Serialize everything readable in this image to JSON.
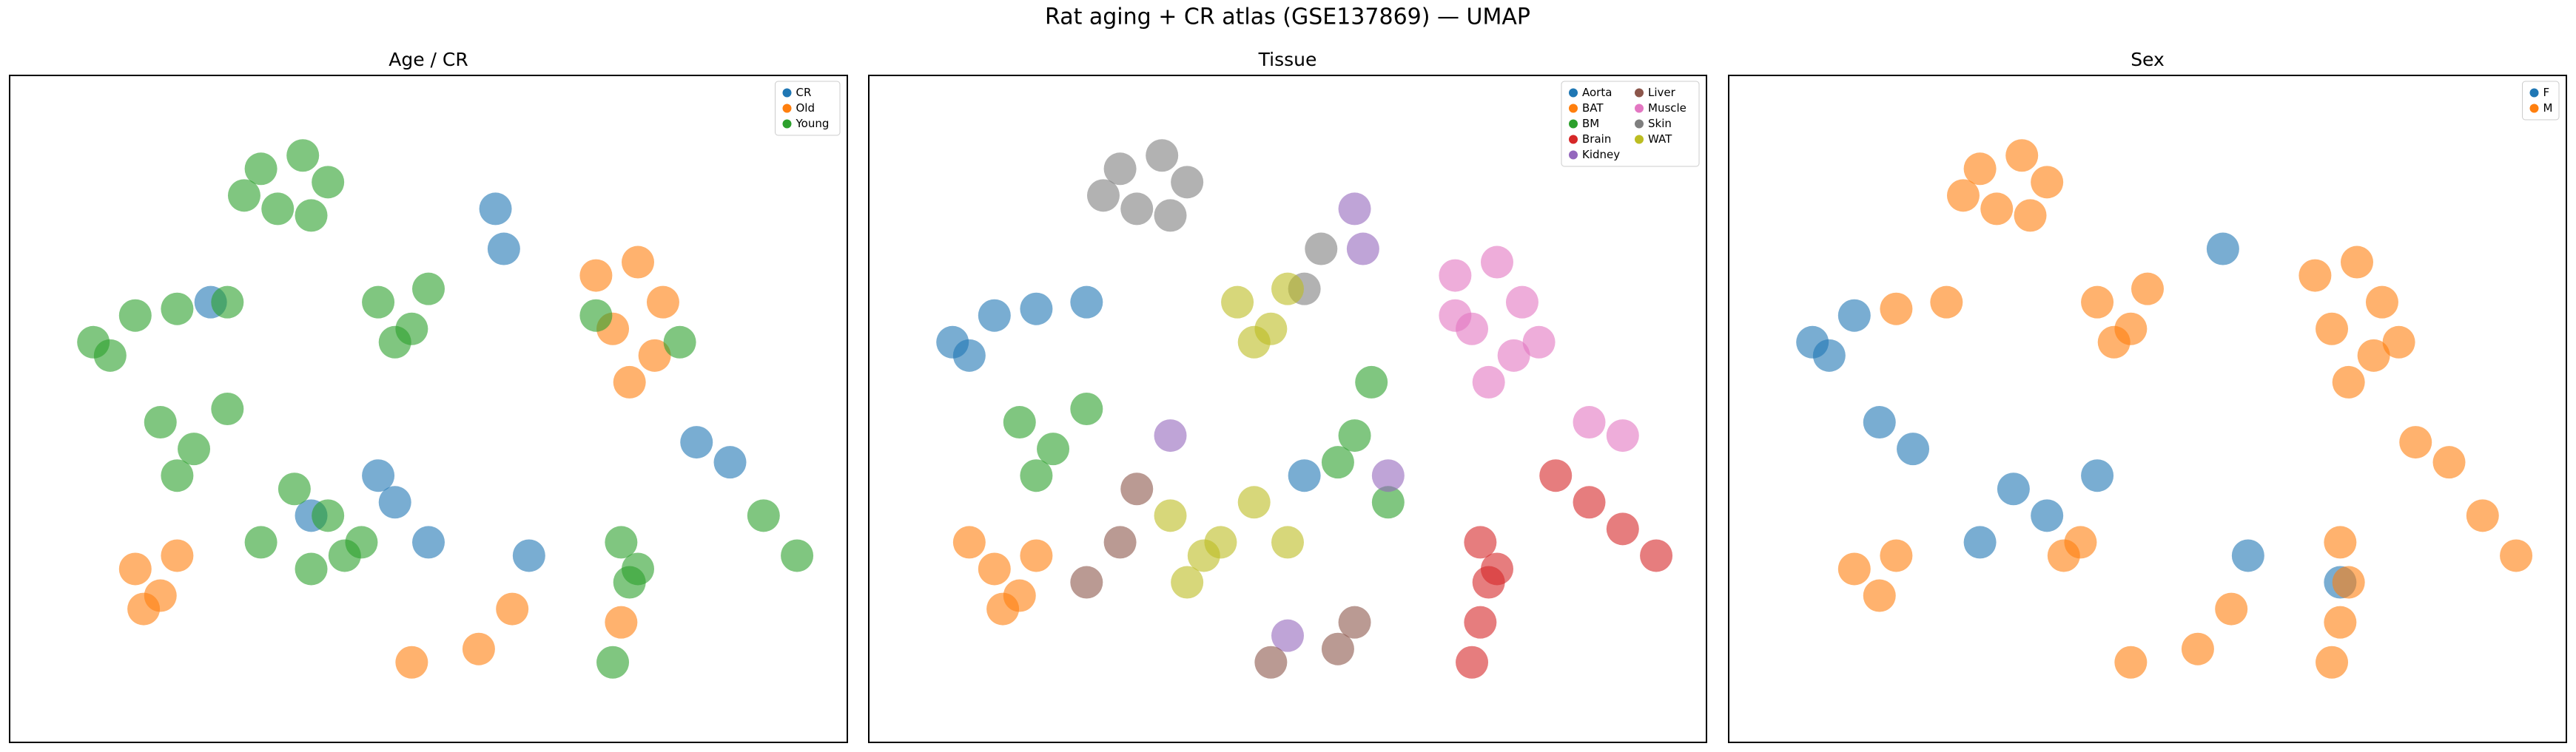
{
  "title": "Rat aging + CR atlas (GSE137869) — UMAP",
  "chart_data": [
    {
      "type": "scatter",
      "title": "Age / CR",
      "xlim": [
        0,
        100
      ],
      "ylim": [
        0,
        100
      ],
      "legend": "upper right",
      "legend_columns": 1,
      "series": [
        {
          "name": "CR",
          "color": "#1f77b4",
          "x": [
            36,
            46,
            44,
            50,
            82,
            86,
            58,
            59,
            62,
            24
          ],
          "y": [
            34,
            36,
            40,
            30,
            45,
            42,
            80,
            74,
            28,
            66
          ]
        },
        {
          "name": "Old",
          "color": "#ff7f0e",
          "x": [
            70,
            75,
            78,
            72,
            77,
            74,
            15,
            18,
            20,
            16,
            48,
            56,
            60,
            73
          ],
          "y": [
            70,
            72,
            66,
            62,
            58,
            54,
            26,
            22,
            28,
            20,
            12,
            14,
            20,
            18
          ]
        },
        {
          "name": "Young",
          "color": "#2ca02c",
          "x": [
            30,
            35,
            38,
            32,
            36,
            28,
            10,
            15,
            20,
            26,
            12,
            44,
            48,
            50,
            46,
            34,
            38,
            42,
            40,
            30,
            18,
            22,
            26,
            20,
            73,
            74,
            72,
            75,
            90,
            94,
            80,
            70,
            36
          ],
          "y": [
            86,
            88,
            84,
            80,
            79,
            82,
            60,
            64,
            65,
            66,
            58,
            66,
            62,
            68,
            60,
            38,
            34,
            30,
            28,
            30,
            48,
            44,
            50,
            40,
            30,
            24,
            12,
            26,
            34,
            28,
            60,
            64,
            26
          ]
        }
      ]
    },
    {
      "type": "scatter",
      "title": "Tissue",
      "xlim": [
        0,
        100
      ],
      "ylim": [
        0,
        100
      ],
      "legend": "upper right",
      "legend_columns": 2,
      "series": [
        {
          "name": "Aorta",
          "color": "#1f77b4",
          "x": [
            10,
            15,
            20,
            26,
            12,
            52
          ],
          "y": [
            60,
            64,
            65,
            66,
            58,
            40
          ]
        },
        {
          "name": "BAT",
          "color": "#ff7f0e",
          "x": [
            15,
            18,
            20,
            16,
            12
          ],
          "y": [
            26,
            22,
            28,
            20,
            30
          ]
        },
        {
          "name": "BM",
          "color": "#2ca02c",
          "x": [
            18,
            22,
            26,
            20,
            56,
            58,
            60,
            62
          ],
          "y": [
            48,
            44,
            50,
            40,
            42,
            46,
            54,
            36
          ]
        },
        {
          "name": "Brain",
          "color": "#d62728",
          "x": [
            73,
            74,
            73,
            72,
            75,
            82,
            86,
            90,
            94
          ],
          "y": [
            30,
            24,
            18,
            12,
            26,
            40,
            36,
            32,
            28
          ]
        },
        {
          "name": "Kidney",
          "color": "#9467bd",
          "x": [
            58,
            59,
            36,
            62,
            50
          ],
          "y": [
            80,
            74,
            46,
            40,
            16
          ]
        },
        {
          "name": "Liver",
          "color": "#8c564b",
          "x": [
            30,
            32,
            26,
            48,
            56,
            58
          ],
          "y": [
            30,
            38,
            24,
            12,
            14,
            18
          ]
        },
        {
          "name": "Muscle",
          "color": "#e377c2",
          "x": [
            70,
            75,
            78,
            72,
            77,
            74,
            80,
            70,
            86,
            90
          ],
          "y": [
            70,
            72,
            66,
            62,
            58,
            54,
            60,
            64,
            48,
            46
          ]
        },
        {
          "name": "Skin",
          "color": "#7f7f7f",
          "x": [
            30,
            35,
            38,
            32,
            36,
            28,
            52,
            54
          ],
          "y": [
            86,
            88,
            84,
            80,
            79,
            82,
            68,
            74
          ]
        },
        {
          "name": "WAT",
          "color": "#bcbd22",
          "x": [
            44,
            48,
            50,
            46,
            36,
            42,
            40,
            46,
            50,
            38
          ],
          "y": [
            66,
            62,
            68,
            60,
            34,
            30,
            28,
            36,
            30,
            24
          ]
        }
      ]
    },
    {
      "type": "scatter",
      "title": "Sex",
      "xlim": [
        0,
        100
      ],
      "ylim": [
        0,
        100
      ],
      "legend": "upper right",
      "legend_columns": 1,
      "series": [
        {
          "name": "F",
          "color": "#1f77b4",
          "x": [
            10,
            15,
            12,
            34,
            38,
            18,
            22,
            59,
            44,
            73,
            30,
            62
          ],
          "y": [
            60,
            64,
            58,
            38,
            34,
            48,
            44,
            74,
            40,
            24,
            30,
            28
          ]
        },
        {
          "name": "M",
          "color": "#ff7f0e",
          "x": [
            30,
            35,
            38,
            32,
            36,
            28,
            70,
            75,
            78,
            72,
            77,
            74,
            80,
            73,
            74,
            73,
            72,
            44,
            48,
            50,
            46,
            15,
            18,
            20,
            48,
            56,
            60,
            82,
            86,
            90,
            94,
            42,
            40,
            20,
            26
          ],
          "y": [
            86,
            88,
            84,
            80,
            79,
            82,
            70,
            72,
            66,
            62,
            58,
            54,
            60,
            30,
            24,
            18,
            12,
            66,
            62,
            68,
            60,
            26,
            22,
            28,
            12,
            14,
            20,
            45,
            42,
            34,
            28,
            30,
            28,
            65,
            66
          ]
        }
      ]
    }
  ]
}
